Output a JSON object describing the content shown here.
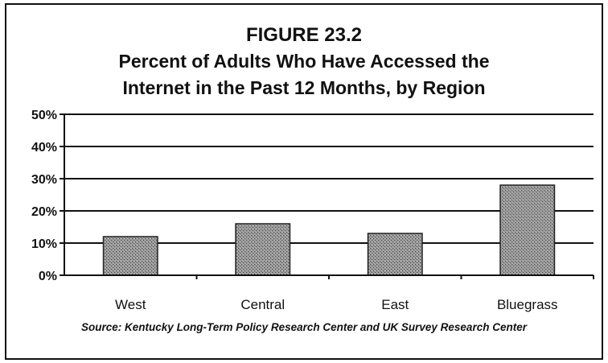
{
  "figure": {
    "number": "FIGURE 23.2",
    "title_line1": "Percent of Adults Who Have Accessed the",
    "title_line2": "Internet in the Past 12 Months, by Region",
    "source": "Source: Kentucky Long-Term Policy Research Center and UK Survey Research Center"
  },
  "chart_data": {
    "type": "bar",
    "title": "Percent of Adults Who Have Accessed the Internet in the Past 12 Months, by Region",
    "categories": [
      "West",
      "Central",
      "East",
      "Bluegrass"
    ],
    "values": [
      12,
      16,
      13,
      28
    ],
    "xlabel": "",
    "ylabel": "",
    "ylim": [
      0,
      50
    ],
    "yticks": [
      0,
      10,
      20,
      30,
      40,
      50
    ],
    "ytick_labels": [
      "0%",
      "10%",
      "20%",
      "30%",
      "40%",
      "50%"
    ],
    "grid": true,
    "legend": "none",
    "bar_color": "#8a8a8a"
  }
}
